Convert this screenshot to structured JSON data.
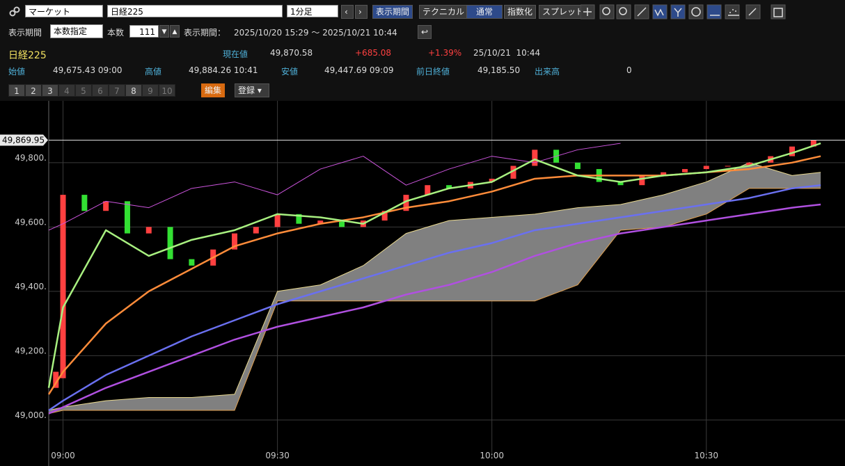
{
  "toolbar": {
    "market": "マーケット",
    "symbol": "日経225",
    "interval": "1分足",
    "buttons": [
      "表示期間",
      "テクニカル",
      "通常",
      "指数化",
      "スプレッド"
    ]
  },
  "period": {
    "label": "表示期間",
    "mode": "本数指定",
    "count_label": "本数",
    "count": "111",
    "range_label": "表示期間：",
    "range": "2025/10/20 15:29 ～ 2025/10/21 10:44"
  },
  "info": {
    "name": "日経225",
    "current_label": "現在値",
    "current": "49,870.58",
    "change": "+685.08",
    "change_pct": "+1.39%",
    "time": "25/10/21  10:44",
    "open_label": "始値",
    "open": "49,675.43 09:00",
    "high_label": "高値",
    "high": "49,884.26 10:41",
    "low_label": "安値",
    "low": "49,447.69 09:09",
    "prev_label": "前日終値",
    "prev": "49,185.50",
    "volume_label": "出来高",
    "volume": "0"
  },
  "tabs": {
    "numbers": [
      "1",
      "2",
      "3",
      "4",
      "5",
      "6",
      "7",
      "8",
      "9",
      "10"
    ],
    "edit": "編集",
    "register": "登録"
  },
  "chart_data": {
    "type": "candlestick",
    "xlim": [
      -2,
      109.4
    ],
    "ylim": [
      48922,
      49992
    ],
    "xticks": [
      {
        "value": 0,
        "label": "09:00"
      },
      {
        "value": 30,
        "label": "09:30"
      },
      {
        "value": 60,
        "label": "10:00"
      },
      {
        "value": 90,
        "label": "10:30"
      }
    ],
    "yticks": [
      {
        "value": 49000,
        "label": "49,000."
      },
      {
        "value": 49200,
        "label": "49,200."
      },
      {
        "value": 49400,
        "label": "49,400."
      },
      {
        "value": 49600,
        "label": "49,600."
      },
      {
        "value": 49800,
        "label": "49,800."
      }
    ],
    "price_line": {
      "value": 49869.95,
      "label": "49,869.95"
    },
    "candles": {
      "x": [
        -1,
        0,
        3,
        6,
        9,
        12,
        15,
        18,
        21,
        24,
        27,
        30,
        33,
        36,
        39,
        42,
        45,
        48,
        51,
        54,
        57,
        60,
        63,
        66,
        69,
        72,
        75,
        78,
        81,
        84,
        87,
        90,
        93,
        96,
        99,
        102,
        105
      ],
      "open": [
        49100,
        49130,
        49700,
        49650,
        49680,
        49580,
        49600,
        49500,
        49480,
        49530,
        49580,
        49600,
        49640,
        49610,
        49620,
        49600,
        49620,
        49650,
        49700,
        49730,
        49720,
        49740,
        49750,
        49790,
        49840,
        49800,
        49780,
        49740,
        49730,
        49760,
        49770,
        49780,
        49790,
        49790,
        49800,
        49820,
        49850
      ],
      "close": [
        49150,
        49700,
        49650,
        49680,
        49580,
        49600,
        49500,
        49480,
        49530,
        49580,
        49600,
        49640,
        49610,
        49620,
        49600,
        49620,
        49650,
        49700,
        49730,
        49720,
        49740,
        49750,
        49790,
        49840,
        49800,
        49780,
        49740,
        49730,
        49760,
        49770,
        49780,
        49790,
        49790,
        49800,
        49820,
        49850,
        49870
      ],
      "up_color": "#ff4040",
      "down_color": "#33e033"
    },
    "x": [
      -2,
      0,
      6,
      12,
      18,
      24,
      30,
      36,
      42,
      48,
      54,
      60,
      66,
      72,
      78,
      84,
      90,
      96,
      102,
      106
    ],
    "cloud": {
      "color": "#808080",
      "upper": [
        49030,
        49040,
        49060,
        49070,
        49070,
        49080,
        49400,
        49420,
        49480,
        49580,
        49620,
        49630,
        49640,
        49660,
        49670,
        49700,
        49740,
        49800,
        49760,
        49770
      ],
      "lower": [
        49020,
        49030,
        49030,
        49030,
        49030,
        49030,
        49370,
        49370,
        49370,
        49370,
        49370,
        49370,
        49370,
        49420,
        49590,
        49600,
        49640,
        49720,
        49720,
        49720
      ]
    },
    "series": [
      {
        "color": "#cc55dd",
        "width": 1,
        "values": [
          49590,
          49610,
          49680,
          49660,
          49720,
          49740,
          49700,
          49780,
          49820,
          49730,
          49780,
          49820,
          49800,
          49840,
          49860,
          null,
          null,
          null,
          null,
          null
        ]
      },
      {
        "color": "#b050e0",
        "width": 2.5,
        "values": [
          49020,
          49040,
          49100,
          49150,
          49200,
          49250,
          49290,
          49320,
          49350,
          49390,
          49420,
          49460,
          49510,
          49550,
          49580,
          49600,
          49620,
          49640,
          49660,
          49670
        ]
      },
      {
        "color": "#6a70f0",
        "width": 2.5,
        "values": [
          49030,
          49060,
          49140,
          49200,
          49260,
          49310,
          49360,
          49400,
          49440,
          49480,
          49520,
          49550,
          49590,
          49610,
          49630,
          49650,
          49670,
          49690,
          49720,
          49730
        ]
      },
      {
        "color": "#ff8c3a",
        "width": 2.5,
        "values": [
          49080,
          49150,
          49300,
          49400,
          49470,
          49540,
          49580,
          49610,
          49630,
          49660,
          49680,
          49710,
          49750,
          49760,
          49760,
          49760,
          49770,
          49780,
          49800,
          49820
        ]
      },
      {
        "color": "#a8f080",
        "width": 2.5,
        "values": [
          49100,
          49350,
          49590,
          49510,
          49560,
          49590,
          49640,
          49630,
          49610,
          49680,
          49720,
          49740,
          49810,
          49760,
          49740,
          49760,
          49770,
          49790,
          49830,
          49860
        ]
      }
    ]
  }
}
